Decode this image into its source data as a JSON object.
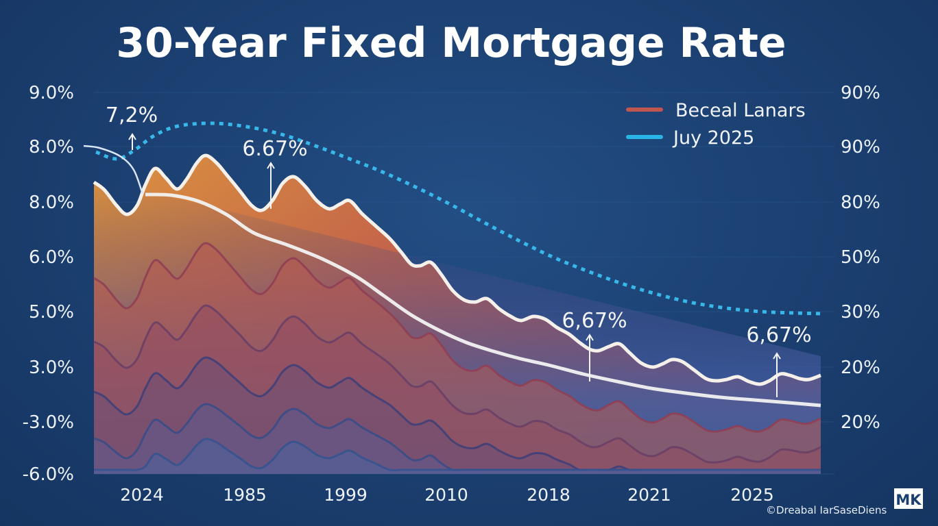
{
  "chart_data": {
    "type": "area",
    "title": "30-Year Fixed Mortgage Rate",
    "categories": [
      "2024",
      "1985",
      "1999",
      "2010",
      "2018",
      "2021",
      "2025"
    ],
    "y_tick_labels": [
      "9.0%",
      "8.0%",
      "8.0%",
      "6.0%",
      "5.0%",
      "3.0%",
      "-3.0%",
      "-6.0%"
    ],
    "y2_tick_labels": [
      "90%",
      "90%",
      "80%",
      "50%",
      "30%",
      "20%",
      "20%"
    ],
    "grid": true,
    "legend_position": "top-right",
    "legend": [
      {
        "name": "Beceal Lanars",
        "color": "#c0564f",
        "style": "solid"
      },
      {
        "name": "Juy 2025",
        "color": "#29b6e6",
        "style": "solid"
      }
    ],
    "annotations": [
      "7,2%",
      "6.67%",
      "6,67%",
      "6,67%"
    ],
    "colors": {
      "background": "#1b3f70",
      "area_top": "#d98a3f",
      "area_bottom": "#3f5fa0",
      "trend_line": "#f2f2f2",
      "dotted_line": "#38b8ea"
    }
  },
  "footer": {
    "credit": "©Dreabal IarSaseDiens",
    "logo": "MK"
  }
}
